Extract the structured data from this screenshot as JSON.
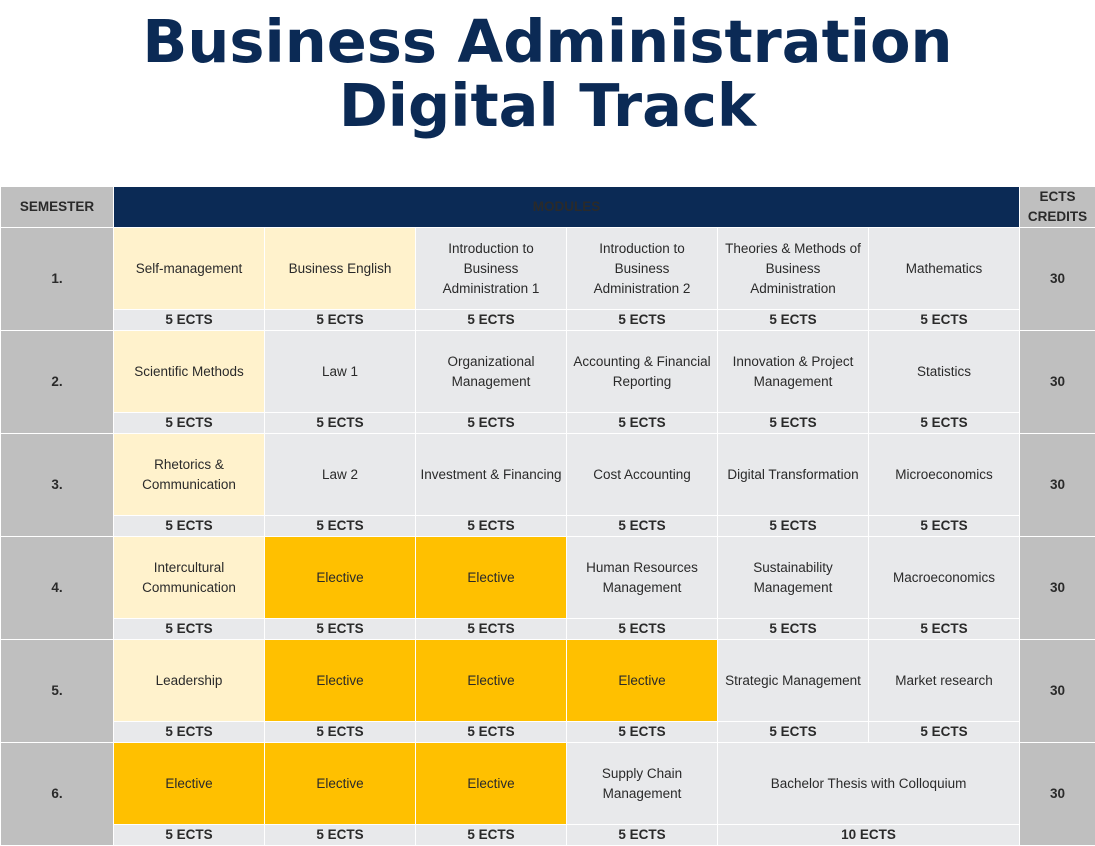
{
  "title": {
    "line1": "Business Administration",
    "line2": "Digital Track"
  },
  "header": {
    "semester": "SEMESTER",
    "modules": "MODULES",
    "credits_line1": "ECTS",
    "credits_line2": "CREDITS"
  },
  "colors": {
    "navy": "#0b2a55",
    "core_module": "#fff2cc",
    "elective_module": "#ffc000",
    "regular_module": "#e8e9eb",
    "ects_text": "#e0287a",
    "side_column": "#bfbfbf"
  },
  "semesters": [
    {
      "label": "1.",
      "credits": "30",
      "modules": [
        {
          "name": "Self-management",
          "ects": "5 ECTS",
          "kind": "core"
        },
        {
          "name": "Business English",
          "ects": "5 ECTS",
          "kind": "core"
        },
        {
          "name": "Introduction to Business Administration 1",
          "ects": "5 ECTS",
          "kind": "regular"
        },
        {
          "name": "Introduction to Business Administration 2",
          "ects": "5 ECTS",
          "kind": "regular"
        },
        {
          "name": "Theories & Methods of Business Administration",
          "ects": "5 ECTS",
          "kind": "regular"
        },
        {
          "name": "Mathematics",
          "ects": "5 ECTS",
          "kind": "regular"
        }
      ]
    },
    {
      "label": "2.",
      "credits": "30",
      "modules": [
        {
          "name": "Scientific Methods",
          "ects": "5 ECTS",
          "kind": "core"
        },
        {
          "name": "Law 1",
          "ects": "5 ECTS",
          "kind": "regular"
        },
        {
          "name": "Organizational Management",
          "ects": "5 ECTS",
          "kind": "regular"
        },
        {
          "name": "Accounting & Financial Reporting",
          "ects": "5 ECTS",
          "kind": "regular"
        },
        {
          "name": "Innovation & Project Management",
          "ects": "5 ECTS",
          "kind": "regular"
        },
        {
          "name": "Statistics",
          "ects": "5 ECTS",
          "kind": "regular"
        }
      ]
    },
    {
      "label": "3.",
      "credits": "30",
      "modules": [
        {
          "name": "Rhetorics & Communication",
          "ects": "5 ECTS",
          "kind": "core"
        },
        {
          "name": "Law 2",
          "ects": "5 ECTS",
          "kind": "regular"
        },
        {
          "name": "Investment & Financing",
          "ects": "5 ECTS",
          "kind": "regular"
        },
        {
          "name": "Cost Accounting",
          "ects": "5 ECTS",
          "kind": "regular"
        },
        {
          "name": "Digital Transformation",
          "ects": "5 ECTS",
          "kind": "regular"
        },
        {
          "name": "Microeconomics",
          "ects": "5 ECTS",
          "kind": "regular"
        }
      ]
    },
    {
      "label": "4.",
      "credits": "30",
      "modules": [
        {
          "name": "Intercultural Communication",
          "ects": "5 ECTS",
          "kind": "core"
        },
        {
          "name": "Elective",
          "ects": "5 ECTS",
          "kind": "elective"
        },
        {
          "name": "Elective",
          "ects": "5 ECTS",
          "kind": "elective"
        },
        {
          "name": "Human Resources Management",
          "ects": "5 ECTS",
          "kind": "regular"
        },
        {
          "name": "Sustainability Management",
          "ects": "5 ECTS",
          "kind": "regular"
        },
        {
          "name": "Macroeconomics",
          "ects": "5 ECTS",
          "kind": "regular"
        }
      ]
    },
    {
      "label": "5.",
      "credits": "30",
      "modules": [
        {
          "name": "Leadership",
          "ects": "5 ECTS",
          "kind": "core"
        },
        {
          "name": "Elective",
          "ects": "5 ECTS",
          "kind": "elective"
        },
        {
          "name": "Elective",
          "ects": "5 ECTS",
          "kind": "elective"
        },
        {
          "name": "Elective",
          "ects": "5 ECTS",
          "kind": "elective"
        },
        {
          "name": "Strategic Management",
          "ects": "5 ECTS",
          "kind": "regular"
        },
        {
          "name": "Market research",
          "ects": "5 ECTS",
          "kind": "regular"
        }
      ]
    },
    {
      "label": "6.",
      "credits": "30",
      "modules": [
        {
          "name": "Elective",
          "ects": "5 ECTS",
          "kind": "elective"
        },
        {
          "name": "Elective",
          "ects": "5 ECTS",
          "kind": "elective"
        },
        {
          "name": "Elective",
          "ects": "5 ECTS",
          "kind": "elective"
        },
        {
          "name": "Supply Chain Management",
          "ects": "5 ECTS",
          "kind": "regular"
        },
        {
          "name": "Bachelor Thesis with Colloquium",
          "ects": "10 ECTS",
          "kind": "regular",
          "span": 2
        }
      ]
    }
  ]
}
